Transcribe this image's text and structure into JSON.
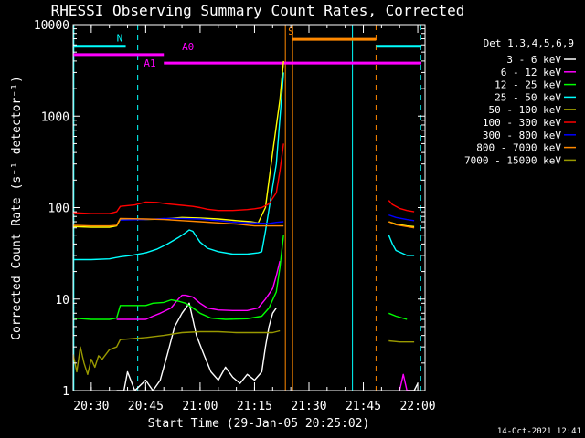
{
  "chart_data": {
    "type": "line",
    "title": "RHESSI Observing Summary Count Rates, Corrected",
    "xlabel": "Start Time (29-Jan-05 20:25:02)",
    "ylabel": "Corrected Count Rate (s⁻¹ detector⁻¹)",
    "x_unit": "minutes after 20:25:02",
    "xlim": [
      0,
      97
    ],
    "ylim": [
      1,
      10000
    ],
    "y_scale": "log",
    "x_ticks": [
      {
        "t": 5,
        "label": "20:30"
      },
      {
        "t": 20,
        "label": "20:45"
      },
      {
        "t": 35,
        "label": "21:00"
      },
      {
        "t": 50,
        "label": "21:15"
      },
      {
        "t": 65,
        "label": "21:30"
      },
      {
        "t": 80,
        "label": "21:45"
      },
      {
        "t": 95,
        "label": "22:00"
      }
    ],
    "y_ticks": [
      {
        "v": 1,
        "label": "1"
      },
      {
        "v": 10,
        "label": "10"
      },
      {
        "v": 100,
        "label": "100"
      },
      {
        "v": 1000,
        "label": "1000"
      },
      {
        "v": 10000,
        "label": "10000"
      }
    ],
    "legend_title": "Det 1,3,4,5,6,9",
    "legend_placement": "right",
    "series": [
      {
        "name": "3 - 6 keV",
        "color": "#ffffff",
        "segments": [
          [
            [
              12,
              1
            ],
            [
              14,
              1
            ],
            [
              15,
              1.6
            ],
            [
              17,
              1
            ],
            [
              20,
              1.3
            ],
            [
              22,
              1
            ],
            [
              24,
              1.3
            ],
            [
              25,
              1.8
            ],
            [
              26,
              2.5
            ],
            [
              28,
              5
            ],
            [
              30,
              7
            ],
            [
              32,
              9
            ],
            [
              33,
              6
            ],
            [
              34,
              4
            ],
            [
              36,
              2.5
            ],
            [
              38,
              1.6
            ],
            [
              40,
              1.3
            ],
            [
              42,
              1.8
            ],
            [
              44,
              1.4
            ],
            [
              46,
              1.2
            ],
            [
              48,
              1.5
            ],
            [
              50,
              1.3
            ],
            [
              52,
              1.6
            ],
            [
              53,
              3
            ],
            [
              54,
              5
            ],
            [
              55,
              7
            ],
            [
              56,
              8
            ]
          ],
          [
            [
              92,
              1
            ],
            [
              94,
              1
            ],
            [
              95,
              1.2
            ]
          ]
        ]
      },
      {
        "name": "6 - 12 keV",
        "color": "#ff00ff",
        "segments": [
          [
            [
              12,
              6
            ],
            [
              20,
              6
            ],
            [
              22,
              6.5
            ],
            [
              24,
              7
            ],
            [
              27,
              8
            ],
            [
              29,
              10
            ],
            [
              30,
              11
            ],
            [
              31,
              11
            ],
            [
              33,
              10.5
            ],
            [
              35,
              9
            ],
            [
              37,
              8
            ],
            [
              40,
              7.6
            ],
            [
              44,
              7.5
            ],
            [
              48,
              7.5
            ],
            [
              51,
              8
            ],
            [
              53,
              10
            ],
            [
              55,
              13
            ],
            [
              56,
              18
            ],
            [
              57,
              26
            ]
          ],
          [
            [
              90,
              1
            ],
            [
              91,
              1.5
            ],
            [
              92,
              1
            ],
            [
              93,
              1
            ]
          ]
        ]
      },
      {
        "name": "12 - 25 keV",
        "color": "#00ff00",
        "segments": [
          [
            [
              0,
              6.2
            ],
            [
              5,
              6
            ],
            [
              10,
              6
            ],
            [
              12,
              6.2
            ],
            [
              13,
              8.5
            ],
            [
              20,
              8.5
            ],
            [
              22,
              9
            ],
            [
              25,
              9.2
            ],
            [
              27,
              9.8
            ],
            [
              29,
              9.5
            ],
            [
              31,
              9
            ],
            [
              33,
              8
            ],
            [
              35,
              7
            ],
            [
              38,
              6.2
            ],
            [
              42,
              6
            ],
            [
              48,
              6.1
            ],
            [
              52,
              6.5
            ],
            [
              54,
              8
            ],
            [
              56,
              12
            ],
            [
              57,
              22
            ],
            [
              58,
              50
            ]
          ],
          [
            [
              87,
              7
            ],
            [
              89,
              6.5
            ],
            [
              92,
              6
            ]
          ]
        ]
      },
      {
        "name": "25 - 50 keV",
        "color": "#00ffff",
        "segments": [
          [
            [
              0,
              27
            ],
            [
              5,
              27
            ],
            [
              10,
              27.5
            ],
            [
              13,
              29
            ],
            [
              16,
              30
            ],
            [
              20,
              32
            ],
            [
              23,
              35
            ],
            [
              26,
              40
            ],
            [
              29,
              47
            ],
            [
              31,
              53
            ],
            [
              32,
              57
            ],
            [
              33,
              55
            ],
            [
              34,
              48
            ],
            [
              35,
              42
            ],
            [
              37,
              36
            ],
            [
              40,
              33
            ],
            [
              44,
              31
            ],
            [
              48,
              31
            ],
            [
              51,
              32
            ],
            [
              52,
              33
            ],
            [
              53,
              55
            ],
            [
              56,
              300
            ],
            [
              58,
              3000
            ]
          ],
          [
            [
              87,
              50
            ],
            [
              88,
              40
            ],
            [
              89,
              34
            ],
            [
              92,
              30
            ],
            [
              94,
              30
            ]
          ]
        ]
      },
      {
        "name": "50 - 100 keV",
        "color": "#ffff00",
        "segments": [
          [
            [
              0,
              62
            ],
            [
              5,
              61
            ],
            [
              10,
              61
            ],
            [
              12,
              63
            ],
            [
              13,
              75
            ],
            [
              20,
              74
            ],
            [
              25,
              75
            ],
            [
              30,
              78
            ],
            [
              35,
              77
            ],
            [
              40,
              75
            ],
            [
              45,
              72
            ],
            [
              49,
              70
            ],
            [
              51,
              68
            ],
            [
              53,
              100
            ],
            [
              55,
              400
            ],
            [
              57,
              1500
            ],
            [
              58,
              4000
            ]
          ],
          [
            [
              87,
              70
            ],
            [
              89,
              66
            ],
            [
              92,
              63
            ],
            [
              94,
              62
            ]
          ]
        ]
      },
      {
        "name": "100 - 300 keV",
        "color": "#ff0000",
        "segments": [
          [
            [
              0,
              88
            ],
            [
              5,
              86
            ],
            [
              10,
              86
            ],
            [
              12,
              90
            ],
            [
              13,
              103
            ],
            [
              17,
              107
            ],
            [
              20,
              115
            ],
            [
              23,
              114
            ],
            [
              26,
              110
            ],
            [
              30,
              106
            ],
            [
              33,
              103
            ],
            [
              35,
              100
            ],
            [
              37,
              96
            ],
            [
              40,
              93
            ],
            [
              44,
              93
            ],
            [
              48,
              95
            ],
            [
              50,
              97
            ],
            [
              52,
              100
            ],
            [
              54,
              110
            ],
            [
              56,
              145
            ],
            [
              57,
              250
            ],
            [
              58,
              500
            ]
          ],
          [
            [
              87,
              120
            ],
            [
              88,
              108
            ],
            [
              90,
              98
            ],
            [
              92,
              93
            ],
            [
              94,
              90
            ]
          ]
        ]
      },
      {
        "name": "300 - 800 keV",
        "color": "#0000ff",
        "segments": [
          [
            [
              13,
              73
            ],
            [
              20,
              74
            ],
            [
              25,
              76
            ],
            [
              30,
              76
            ],
            [
              35,
              75
            ],
            [
              40,
              72
            ],
            [
              45,
              69
            ],
            [
              50,
              68
            ],
            [
              54,
              67
            ],
            [
              56,
              69
            ],
            [
              58,
              70
            ]
          ],
          [
            [
              87,
              83
            ],
            [
              89,
              78
            ],
            [
              92,
              74
            ],
            [
              94,
              72
            ]
          ]
        ]
      },
      {
        "name": "800 - 7000 keV",
        "color": "#ff8800",
        "segments": [
          [
            [
              0,
              64
            ],
            [
              5,
              63
            ],
            [
              10,
              63
            ],
            [
              12,
              64
            ],
            [
              13,
              76
            ],
            [
              20,
              75
            ],
            [
              25,
              74
            ],
            [
              30,
              72
            ],
            [
              35,
              70
            ],
            [
              40,
              68
            ],
            [
              45,
              66
            ],
            [
              50,
              63
            ],
            [
              55,
              63
            ],
            [
              58,
              63
            ]
          ],
          [
            [
              87,
              70
            ],
            [
              89,
              65
            ],
            [
              92,
              62
            ],
            [
              94,
              60
            ]
          ]
        ]
      },
      {
        "name": "7000 - 15000 keV",
        "color": "#999900",
        "segments": [
          [
            [
              0,
              2.5
            ],
            [
              1,
              1.6
            ],
            [
              2,
              3
            ],
            [
              3,
              2
            ],
            [
              4,
              1.5
            ],
            [
              5,
              2.2
            ],
            [
              6,
              1.8
            ],
            [
              7,
              2.4
            ],
            [
              8,
              2.2
            ],
            [
              10,
              2.8
            ],
            [
              12,
              3
            ],
            [
              13,
              3.6
            ],
            [
              20,
              3.8
            ],
            [
              25,
              4
            ],
            [
              30,
              4.3
            ],
            [
              35,
              4.4
            ],
            [
              40,
              4.4
            ],
            [
              45,
              4.3
            ],
            [
              50,
              4.3
            ],
            [
              55,
              4.3
            ],
            [
              57,
              4.5
            ]
          ],
          [
            [
              87,
              3.5
            ],
            [
              90,
              3.4
            ],
            [
              94,
              3.4
            ]
          ]
        ]
      }
    ],
    "status_bars": [
      {
        "label": "N",
        "color": "#00ffff",
        "y": 5800,
        "segments": [
          [
            0,
            14.5
          ],
          [
            83.5,
            96
          ]
        ]
      },
      {
        "label": "A0",
        "color": "#ff00ff",
        "y": 4700,
        "label_t": 30,
        "segments": [
          [
            0,
            25
          ]
        ]
      },
      {
        "label": "A1",
        "color": "#ff00ff",
        "y": 3800,
        "label_t": 20,
        "segments": [
          [
            25,
            96
          ]
        ]
      },
      {
        "label": "S",
        "color": "#ff8800",
        "y": 6900,
        "segments": [
          [
            60.5,
            83.5
          ]
        ]
      }
    ],
    "vertical_lines": [
      {
        "t": 0.2,
        "color": "#00ffff",
        "style": "solid"
      },
      {
        "t": 17.8,
        "color": "#00ffff",
        "style": "dashed"
      },
      {
        "t": 58.5,
        "color": "#ff8800",
        "style": "solid"
      },
      {
        "t": 60.5,
        "color": "#ff8800",
        "style": "solid"
      },
      {
        "t": 77.0,
        "color": "#00ffff",
        "style": "solid"
      },
      {
        "t": 83.5,
        "color": "#ff8800",
        "style": "dashed"
      },
      {
        "t": 95.8,
        "color": "#00ffff",
        "style": "dashed"
      }
    ]
  },
  "footer": {
    "timestamp": "14-Oct-2021 12:41"
  }
}
